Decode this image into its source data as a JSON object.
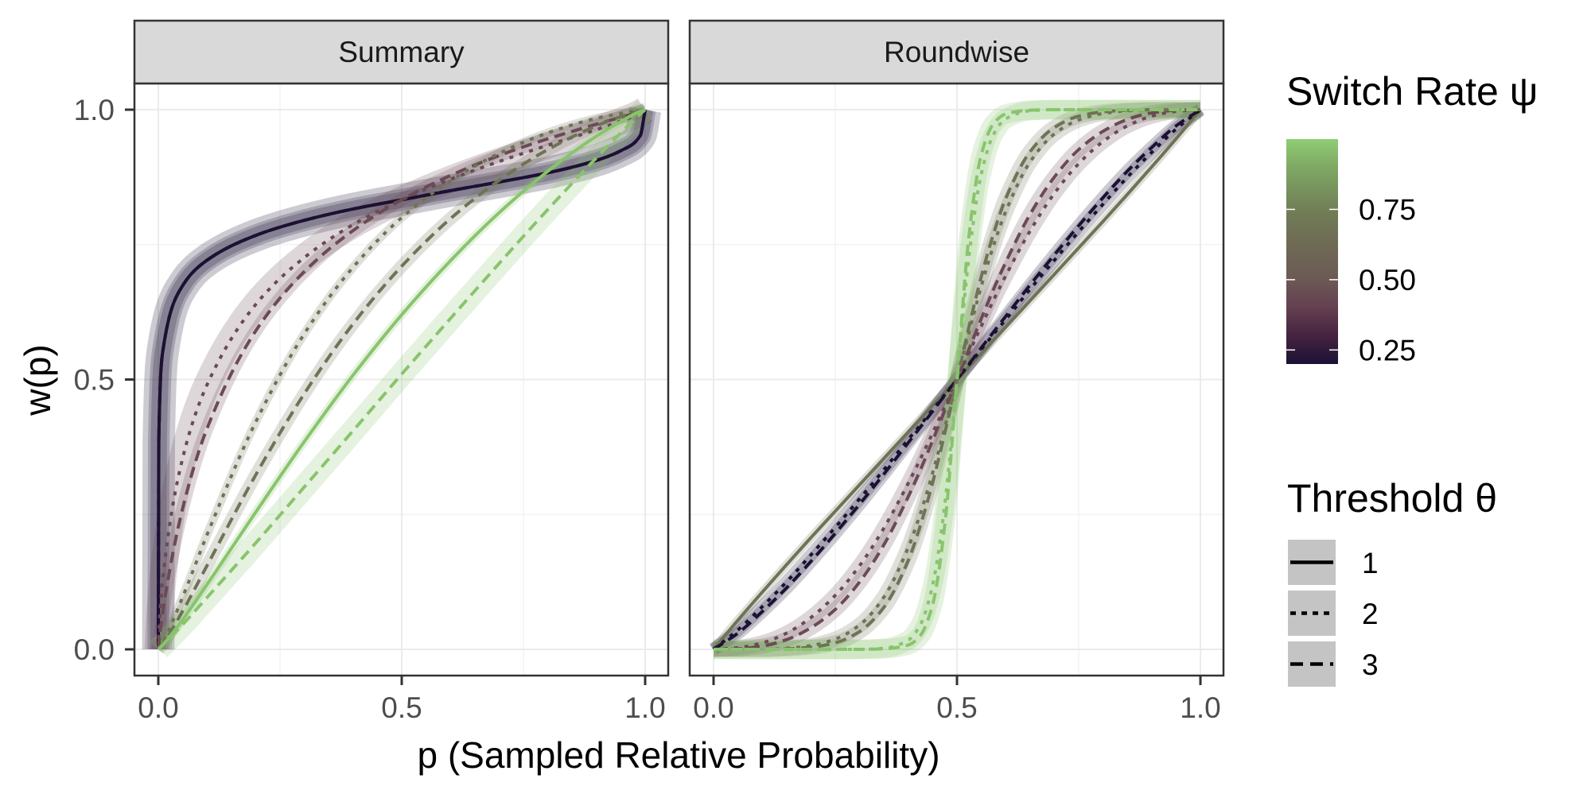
{
  "chart_data": {
    "type": "line",
    "xlabel": "p (Sampled Relative Probability)",
    "ylabel": "w(p)",
    "xlim": [
      0,
      1
    ],
    "ylim": [
      0,
      1
    ],
    "grid": true,
    "x_ticks": {
      "values": [
        0,
        0.5,
        1
      ],
      "labels": [
        "0.0",
        "0.5",
        "1.0"
      ]
    },
    "y_ticks": {
      "values": [
        0,
        0.5,
        1
      ],
      "labels": [
        "0.0",
        "0.5",
        "1.0"
      ]
    },
    "minor_breaks": [
      0.25,
      0.75
    ],
    "legend_position": "right",
    "panels": [
      {
        "title": "Summary",
        "p": [
          0,
          0.001,
          0.01,
          0.05,
          0.1,
          0.2,
          0.3,
          0.4,
          0.5,
          0.6,
          0.7,
          0.8,
          0.9,
          0.95,
          0.99,
          1
        ],
        "series": [
          {
            "psi": 0.2,
            "theta": 1,
            "color": "#1c1134",
            "band": 0.03,
            "w": [
              0,
              0.387,
              0.557,
              0.674,
              0.721,
              0.767,
              0.795,
              0.816,
              0.833,
              0.85,
              0.866,
              0.883,
              0.906,
              0.924,
              0.952,
              1
            ]
          },
          {
            "psi": 0.2,
            "theta": 2,
            "color": "#1c1134",
            "band": 0.02,
            "w": [
              0,
              0.387,
              0.557,
              0.674,
              0.721,
              0.767,
              0.795,
              0.816,
              0.833,
              0.85,
              0.866,
              0.883,
              0.906,
              0.924,
              0.952,
              1
            ]
          },
          {
            "psi": 0.2,
            "theta": 3,
            "color": "#1c1134",
            "band": 0.015,
            "w": [
              0,
              0.387,
              0.557,
              0.674,
              0.721,
              0.767,
              0.795,
              0.816,
              0.833,
              0.85,
              0.866,
              0.883,
              0.906,
              0.924,
              0.952,
              1
            ]
          },
          {
            "psi": 0.4,
            "theta": 2,
            "color": "#6b4a55",
            "band": 0.025,
            "w": [
              0,
              0.027,
              0.137,
              0.354,
              0.49,
              0.639,
              0.726,
              0.787,
              0.833,
              0.871,
              0.904,
              0.934,
              0.963,
              0.979,
              0.994,
              1
            ]
          },
          {
            "psi": 0.4,
            "theta": 3,
            "color": "#6b4a55",
            "band": 0.012,
            "w": [
              0,
              0.01,
              0.074,
              0.261,
              0.409,
              0.59,
              0.7,
              0.776,
              0.833,
              0.878,
              0.915,
              0.946,
              0.973,
              0.986,
              0.996,
              1
            ]
          },
          {
            "psi": 0.65,
            "theta": 2,
            "color": "#6e7355",
            "band": 0.008,
            "w": [
              0,
              0.001,
              0.014,
              0.097,
              0.212,
              0.421,
              0.585,
              0.708,
              0.8,
              0.868,
              0.919,
              0.957,
              0.984,
              0.993,
              0.999,
              1
            ]
          },
          {
            "psi": 0.65,
            "theta": 3,
            "color": "#6e7355",
            "band": 0.012,
            "w": [
              0,
              0.001,
              0.011,
              0.071,
              0.155,
              0.323,
              0.474,
              0.603,
              0.71,
              0.798,
              0.869,
              0.926,
              0.97,
              0.987,
              0.998,
              1
            ]
          },
          {
            "psi": 0.95,
            "theta": 1,
            "color": "#88c46c",
            "band": 0.008,
            "w": [
              0,
              0.001,
              0.009,
              0.055,
              0.12,
              0.254,
              0.385,
              0.508,
              0.62,
              0.72,
              0.809,
              0.886,
              0.951,
              0.978,
              0.997,
              1
            ]
          },
          {
            "psi": 0.95,
            "theta": 3,
            "color": "#88c46c",
            "band": 0.022,
            "w": [
              0,
              0.001,
              0.009,
              0.046,
              0.096,
              0.197,
              0.301,
              0.405,
              0.51,
              0.613,
              0.715,
              0.815,
              0.911,
              0.957,
              0.992,
              1
            ]
          }
        ]
      },
      {
        "title": "Roundwise",
        "p": [
          0,
          0.05,
          0.1,
          0.15,
          0.2,
          0.25,
          0.3,
          0.35,
          0.4,
          0.425,
          0.45,
          0.475,
          0.5,
          0.525,
          0.55,
          0.575,
          0.6,
          0.65,
          0.7,
          0.75,
          0.8,
          0.85,
          0.9,
          0.95,
          1
        ],
        "series": [
          {
            "psi": 0.65,
            "theta": 1,
            "color": "#6e7355",
            "band": 0.008,
            "w": [
              0,
              0.054,
              0.106,
              0.157,
              0.207,
              0.256,
              0.305,
              0.354,
              0.403,
              0.427,
              0.452,
              0.476,
              0.5,
              0.524,
              0.548,
              0.573,
              0.597,
              0.646,
              0.695,
              0.744,
              0.793,
              0.843,
              0.894,
              0.946,
              1
            ]
          },
          {
            "psi": 0.2,
            "theta": 2,
            "color": "#1c1134",
            "band": 0.012,
            "w": [
              0,
              0.036,
              0.079,
              0.125,
              0.175,
              0.226,
              0.279,
              0.333,
              0.389,
              0.416,
              0.444,
              0.472,
              0.5,
              0.528,
              0.556,
              0.584,
              0.611,
              0.667,
              0.721,
              0.774,
              0.825,
              0.875,
              0.921,
              0.964,
              1
            ]
          },
          {
            "psi": 0.2,
            "theta": 3,
            "color": "#1c1134",
            "band": 0.012,
            "w": [
              0,
              0.03,
              0.07,
              0.114,
              0.163,
              0.215,
              0.269,
              0.325,
              0.383,
              0.412,
              0.441,
              0.471,
              0.5,
              0.529,
              0.559,
              0.588,
              0.617,
              0.675,
              0.731,
              0.785,
              0.837,
              0.886,
              0.93,
              0.97,
              1
            ]
          },
          {
            "psi": 0.4,
            "theta": 2,
            "color": "#6b4a55",
            "band": 0.014,
            "w": [
              0,
              0.003,
              0.012,
              0.03,
              0.059,
              0.1,
              0.155,
              0.225,
              0.308,
              0.353,
              0.401,
              0.45,
              0.5,
              0.55,
              0.599,
              0.647,
              0.692,
              0.775,
              0.845,
              0.9,
              0.941,
              0.97,
              0.988,
              0.997,
              1
            ]
          },
          {
            "psi": 0.4,
            "theta": 3,
            "color": "#6b4a55",
            "band": 0.014,
            "w": [
              0,
              0.001,
              0.006,
              0.018,
              0.04,
              0.074,
              0.125,
              0.194,
              0.283,
              0.333,
              0.387,
              0.443,
              0.5,
              0.557,
              0.613,
              0.667,
              0.717,
              0.806,
              0.875,
              0.926,
              0.96,
              0.982,
              0.994,
              0.999,
              1
            ]
          },
          {
            "psi": 0.65,
            "theta": 2,
            "color": "#6e7355",
            "band": 0.014,
            "w": [
              0,
              0,
              0,
              0.002,
              0.007,
              0.019,
              0.045,
              0.097,
              0.189,
              0.252,
              0.327,
              0.411,
              0.5,
              0.589,
              0.673,
              0.748,
              0.811,
              0.903,
              0.955,
              0.981,
              0.993,
              0.998,
              1,
              1,
              1
            ]
          },
          {
            "psi": 0.65,
            "theta": 3,
            "color": "#6e7355",
            "band": 0.014,
            "w": [
              0,
              0,
              0,
              0.001,
              0.004,
              0.012,
              0.033,
              0.078,
              0.165,
              0.23,
              0.309,
              0.401,
              0.5,
              0.599,
              0.691,
              0.77,
              0.835,
              0.922,
              0.967,
              0.988,
              0.996,
              0.999,
              1,
              1,
              1
            ]
          },
          {
            "psi": 0.95,
            "theta": 2,
            "color": "#88c46c",
            "band": 0.018,
            "w": [
              0,
              0,
              0,
              0,
              0,
              0,
              0,
              0.002,
              0.017,
              0.046,
              0.119,
              0.269,
              0.5,
              0.731,
              0.881,
              0.954,
              0.983,
              0.998,
              1,
              1,
              1,
              1,
              1,
              1,
              1
            ]
          },
          {
            "psi": 0.95,
            "theta": 3,
            "color": "#88c46c",
            "band": 0.018,
            "w": [
              0,
              0,
              0,
              0,
              0,
              0,
              0,
              0.001,
              0.008,
              0.026,
              0.083,
              0.231,
              0.5,
              0.769,
              0.917,
              0.974,
              0.992,
              0.999,
              1,
              1,
              1,
              1,
              1,
              1,
              1
            ]
          }
        ]
      }
    ],
    "legend_color": {
      "title": "Switch Rate ψ",
      "limits": [
        0.2,
        1.0
      ],
      "breaks": [
        0.25,
        0.5,
        0.75
      ],
      "labels": [
        "0.25",
        "0.50",
        "0.75"
      ],
      "stops": [
        {
          "value": 0.2,
          "color": "#1c1134"
        },
        {
          "value": 0.3,
          "color": "#452340"
        },
        {
          "value": 0.4,
          "color": "#653f50"
        },
        {
          "value": 0.5,
          "color": "#6c5956"
        },
        {
          "value": 0.65,
          "color": "#6f6e55"
        },
        {
          "value": 0.75,
          "color": "#717f57"
        },
        {
          "value": 0.9,
          "color": "#7fa864"
        },
        {
          "value": 1.0,
          "color": "#8fcd74"
        }
      ]
    },
    "legend_linetype": {
      "title": "Threshold θ",
      "items": [
        {
          "theta": 1,
          "label": "1"
        },
        {
          "theta": 2,
          "label": "2"
        },
        {
          "theta": 3,
          "label": "3"
        }
      ]
    }
  }
}
